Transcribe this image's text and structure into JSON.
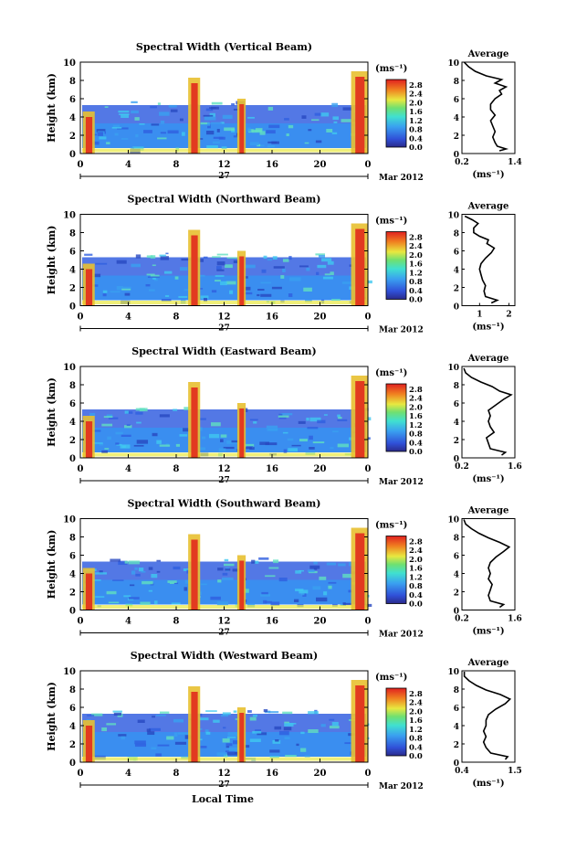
{
  "footer": {
    "xlabel": "Local Time"
  },
  "chart_data": [
    {
      "type": "heatmap",
      "title": "Spectral Width (Vertical Beam)",
      "ylabel": "Height (km)",
      "ylim": [
        0,
        10
      ],
      "yticks": [
        "0",
        "2",
        "4",
        "6",
        "8",
        "10"
      ],
      "xlim": [
        0,
        24
      ],
      "xticks": [
        "0",
        "4",
        "8",
        "12",
        "16",
        "20",
        "0"
      ],
      "date_day": "27",
      "date_label": "Mar 2012",
      "colorbar": {
        "unit": "(ms⁻¹)",
        "ticks": [
          "0.0",
          "0.4",
          "0.8",
          "1.2",
          "1.6",
          "2.0",
          "2.4",
          "2.8"
        ]
      },
      "average": {
        "title": "Average",
        "xlabel": "(ms⁻¹)",
        "xticks": [
          "0.2",
          "1.4"
        ],
        "xlim": [
          0.2,
          1.4
        ],
        "yticks": [
          "0",
          "2",
          "4",
          "6",
          "8",
          "10"
        ],
        "profile": [
          [
            1.05,
            0.3
          ],
          [
            1.2,
            0.5
          ],
          [
            1.0,
            0.8
          ],
          [
            0.95,
            1.2
          ],
          [
            0.9,
            1.8
          ],
          [
            0.95,
            2.4
          ],
          [
            0.9,
            3.0
          ],
          [
            0.85,
            3.6
          ],
          [
            0.95,
            4.2
          ],
          [
            0.85,
            4.8
          ],
          [
            0.85,
            5.4
          ],
          [
            0.95,
            6.0
          ],
          [
            1.1,
            6.5
          ],
          [
            1.05,
            6.9
          ],
          [
            1.2,
            7.3
          ],
          [
            0.95,
            7.7
          ],
          [
            1.1,
            8.1
          ],
          [
            0.75,
            8.5
          ],
          [
            0.5,
            9.0
          ],
          [
            0.35,
            9.5
          ],
          [
            0.25,
            10.0
          ]
        ]
      }
    },
    {
      "type": "heatmap",
      "title": "Spectral Width (Northward Beam)",
      "ylabel": "Height (km)",
      "ylim": [
        0,
        10
      ],
      "yticks": [
        "0",
        "2",
        "4",
        "6",
        "8",
        "10"
      ],
      "xlim": [
        0,
        24
      ],
      "xticks": [
        "0",
        "4",
        "8",
        "12",
        "16",
        "20",
        "0"
      ],
      "date_day": "27",
      "date_label": "Mar 2012",
      "colorbar": {
        "unit": "(ms⁻¹)",
        "ticks": [
          "0.0",
          "0.4",
          "0.8",
          "1.2",
          "1.6",
          "2.0",
          "2.4",
          "2.8"
        ]
      },
      "average": {
        "title": "Average",
        "xlabel": "(ms⁻¹)",
        "xticks": [
          "1",
          "2"
        ],
        "xlim": [
          0.4,
          2.2
        ],
        "yticks": [
          "0",
          "2",
          "4",
          "6",
          "8",
          "10"
        ],
        "profile": [
          [
            1.4,
            0.3
          ],
          [
            1.6,
            0.6
          ],
          [
            1.2,
            1.0
          ],
          [
            1.15,
            1.6
          ],
          [
            1.2,
            2.2
          ],
          [
            1.1,
            2.8
          ],
          [
            1.05,
            3.4
          ],
          [
            1.0,
            4.0
          ],
          [
            1.05,
            4.6
          ],
          [
            1.2,
            5.2
          ],
          [
            1.4,
            5.8
          ],
          [
            1.5,
            6.3
          ],
          [
            1.25,
            6.8
          ],
          [
            1.3,
            7.2
          ],
          [
            1.0,
            7.6
          ],
          [
            0.8,
            8.0
          ],
          [
            0.8,
            8.5
          ],
          [
            0.95,
            9.0
          ],
          [
            0.75,
            9.4
          ],
          [
            0.5,
            9.8
          ]
        ]
      }
    },
    {
      "type": "heatmap",
      "title": "Spectral Width (Eastward Beam)",
      "ylabel": "Height (km)",
      "ylim": [
        0,
        10
      ],
      "yticks": [
        "0",
        "2",
        "4",
        "6",
        "8",
        "10"
      ],
      "xlim": [
        0,
        24
      ],
      "xticks": [
        "0",
        "4",
        "8",
        "12",
        "16",
        "20",
        "0"
      ],
      "date_day": "27",
      "date_label": "Mar 2012",
      "colorbar": {
        "unit": "(ms⁻¹)",
        "ticks": [
          "0.0",
          "0.4",
          "0.8",
          "1.2",
          "1.6",
          "2.0",
          "2.4",
          "2.8"
        ]
      },
      "average": {
        "title": "Average",
        "xlabel": "(ms⁻¹)",
        "xticks": [
          "0.2",
          "1.6"
        ],
        "xlim": [
          0.2,
          1.6
        ],
        "yticks": [
          "0",
          "2",
          "4",
          "6",
          "8",
          "10"
        ],
        "profile": [
          [
            1.25,
            0.3
          ],
          [
            1.35,
            0.6
          ],
          [
            0.95,
            1.0
          ],
          [
            0.9,
            1.6
          ],
          [
            0.85,
            2.2
          ],
          [
            1.05,
            2.8
          ],
          [
            0.95,
            3.4
          ],
          [
            0.9,
            4.0
          ],
          [
            0.95,
            4.6
          ],
          [
            0.9,
            5.2
          ],
          [
            1.1,
            5.8
          ],
          [
            1.3,
            6.4
          ],
          [
            1.5,
            6.9
          ],
          [
            1.2,
            7.3
          ],
          [
            1.0,
            7.8
          ],
          [
            0.7,
            8.3
          ],
          [
            0.45,
            8.8
          ],
          [
            0.3,
            9.3
          ],
          [
            0.25,
            9.8
          ]
        ]
      }
    },
    {
      "type": "heatmap",
      "title": "Spectral Width (Southward Beam)",
      "ylabel": "Height (km)",
      "ylim": [
        0,
        10
      ],
      "yticks": [
        "0",
        "2",
        "4",
        "6",
        "8",
        "10"
      ],
      "xlim": [
        0,
        24
      ],
      "xticks": [
        "0",
        "4",
        "8",
        "12",
        "16",
        "20",
        "0"
      ],
      "date_day": "27",
      "date_label": "Mar 2012",
      "colorbar": {
        "unit": "(ms⁻¹)",
        "ticks": [
          "0.0",
          "0.4",
          "0.8",
          "1.2",
          "1.6",
          "2.0",
          "2.4",
          "2.8"
        ]
      },
      "average": {
        "title": "Average",
        "xlabel": "(ms⁻¹)",
        "xticks": [
          "0.2",
          "1.6"
        ],
        "xlim": [
          0.2,
          1.6
        ],
        "yticks": [
          "0",
          "2",
          "4",
          "6",
          "8",
          "10"
        ],
        "profile": [
          [
            1.2,
            0.3
          ],
          [
            1.3,
            0.6
          ],
          [
            0.95,
            1.0
          ],
          [
            0.9,
            1.6
          ],
          [
            0.95,
            2.2
          ],
          [
            1.0,
            2.8
          ],
          [
            0.9,
            3.4
          ],
          [
            0.95,
            4.0
          ],
          [
            0.9,
            4.6
          ],
          [
            0.95,
            5.2
          ],
          [
            1.1,
            5.8
          ],
          [
            1.3,
            6.4
          ],
          [
            1.45,
            6.9
          ],
          [
            1.2,
            7.4
          ],
          [
            0.9,
            7.9
          ],
          [
            0.65,
            8.4
          ],
          [
            0.45,
            8.9
          ],
          [
            0.3,
            9.4
          ],
          [
            0.25,
            9.9
          ]
        ]
      }
    },
    {
      "type": "heatmap",
      "title": "Spectral Width (Westward Beam)",
      "ylabel": "Height (km)",
      "ylim": [
        0,
        10
      ],
      "yticks": [
        "0",
        "2",
        "4",
        "6",
        "8",
        "10"
      ],
      "xlim": [
        0,
        24
      ],
      "xticks": [
        "0",
        "4",
        "8",
        "12",
        "16",
        "20",
        "0"
      ],
      "date_day": "27",
      "date_label": "Mar 2012",
      "colorbar": {
        "unit": "(ms⁻¹)",
        "ticks": [
          "0.0",
          "0.4",
          "0.8",
          "1.2",
          "1.6",
          "2.0",
          "2.4",
          "2.8"
        ]
      },
      "average": {
        "title": "Average",
        "xlabel": "(ms⁻¹)",
        "xticks": [
          "0.4",
          "1.5"
        ],
        "xlim": [
          0.4,
          1.5
        ],
        "yticks": [
          "0",
          "2",
          "4",
          "6",
          "8",
          "10"
        ],
        "profile": [
          [
            1.3,
            0.3
          ],
          [
            1.35,
            0.6
          ],
          [
            1.0,
            1.0
          ],
          [
            0.9,
            1.6
          ],
          [
            0.85,
            2.2
          ],
          [
            0.9,
            2.8
          ],
          [
            0.85,
            3.4
          ],
          [
            0.9,
            4.0
          ],
          [
            0.9,
            4.6
          ],
          [
            0.95,
            5.2
          ],
          [
            1.1,
            5.8
          ],
          [
            1.3,
            6.4
          ],
          [
            1.4,
            6.9
          ],
          [
            1.2,
            7.4
          ],
          [
            0.9,
            7.9
          ],
          [
            0.7,
            8.4
          ],
          [
            0.55,
            8.9
          ],
          [
            0.45,
            9.4
          ],
          [
            0.45,
            9.9
          ]
        ]
      }
    }
  ]
}
